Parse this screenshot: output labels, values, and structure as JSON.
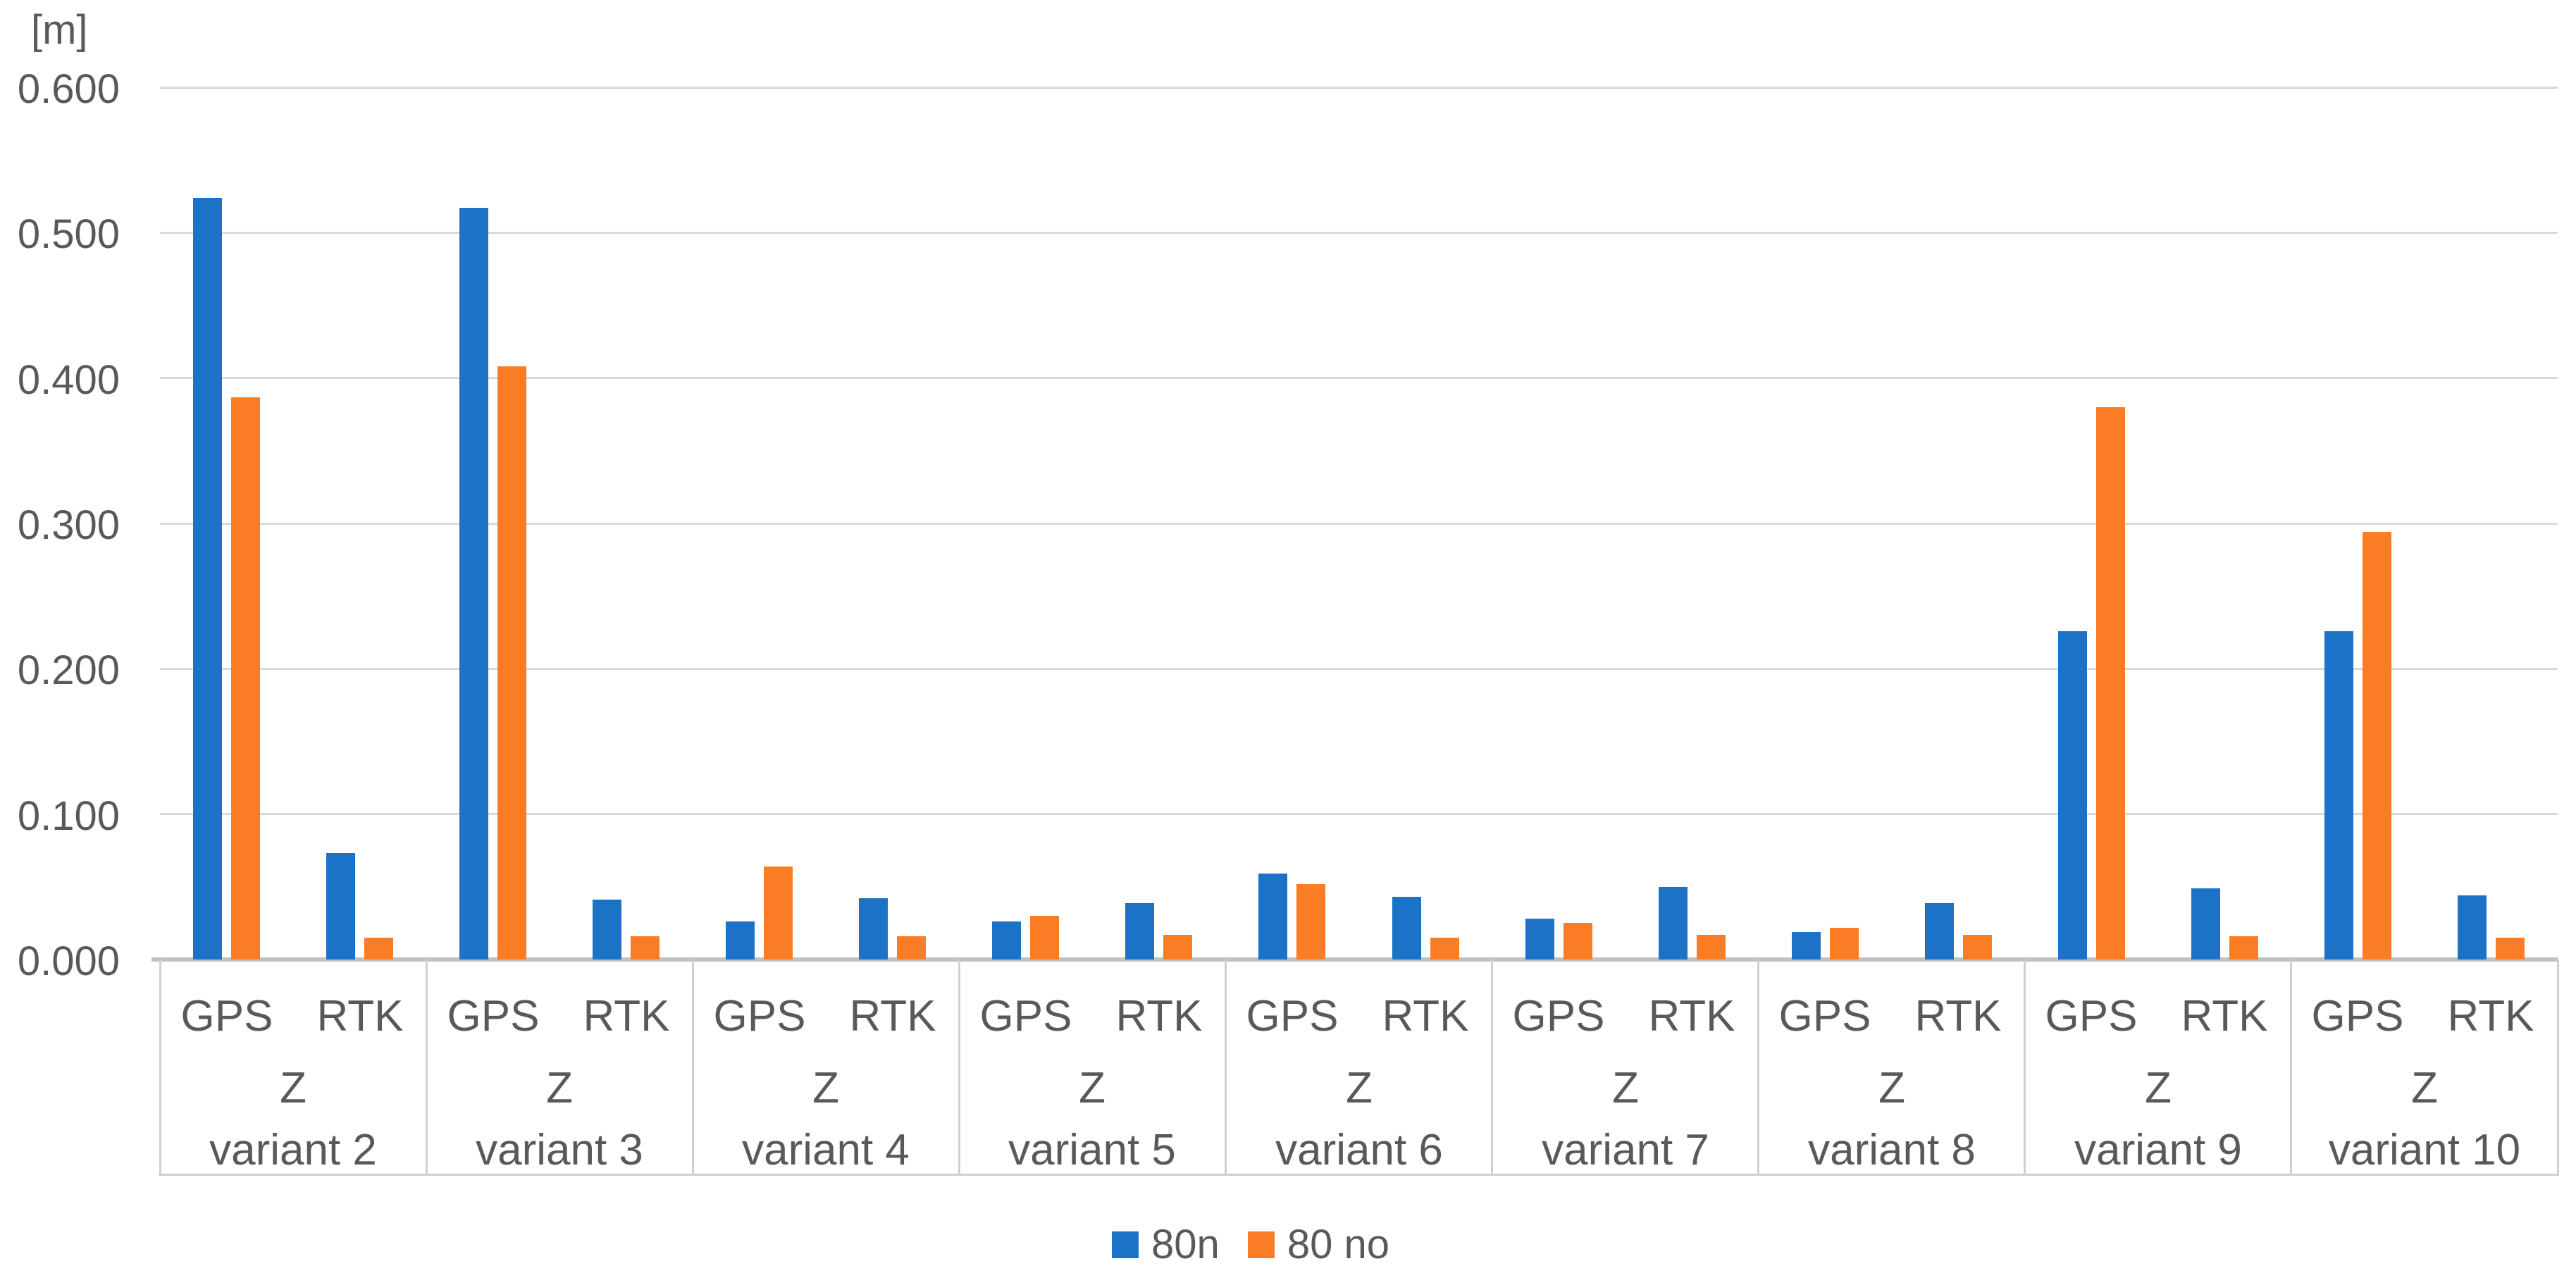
{
  "chart_data": {
    "type": "bar",
    "title": "",
    "unit_label": "[m]",
    "ylabel": "[m]",
    "ylim": [
      0,
      0.6
    ],
    "ytick_step": 0.1,
    "ytick_labels": [
      "0.000",
      "0.100",
      "0.200",
      "0.300",
      "0.400",
      "0.500",
      "0.600"
    ],
    "grid": true,
    "legend_position": "bottom-center",
    "categories": [
      "variant 2",
      "variant 3",
      "variant 4",
      "variant 5",
      "variant 6",
      "variant 7",
      "variant 8",
      "variant 9",
      "variant 10"
    ],
    "level2_label": "Z",
    "sub_categories": [
      "GPS",
      "RTK"
    ],
    "series": [
      {
        "name": "80n",
        "color": "#1B72C6",
        "values_gps": [
          0.524,
          0.517,
          0.026,
          0.026,
          0.059,
          0.028,
          0.019,
          0.226,
          0.226
        ],
        "values_rtk": [
          0.073,
          0.041,
          0.042,
          0.039,
          0.043,
          0.05,
          0.039,
          0.049,
          0.044
        ]
      },
      {
        "name": "80 no",
        "color": "#FA7D26",
        "values_gps": [
          0.387,
          0.408,
          0.064,
          0.03,
          0.052,
          0.025,
          0.022,
          0.38,
          0.294
        ],
        "values_rtk": [
          0.015,
          0.016,
          0.016,
          0.017,
          0.015,
          0.017,
          0.017,
          0.016,
          0.015
        ]
      }
    ],
    "colors": {
      "grid": "#D9D9D9",
      "axis_line": "#C1C1C1",
      "box_border": "#D0D0D0",
      "text": "#595959",
      "background": "#FFFFFF"
    }
  }
}
